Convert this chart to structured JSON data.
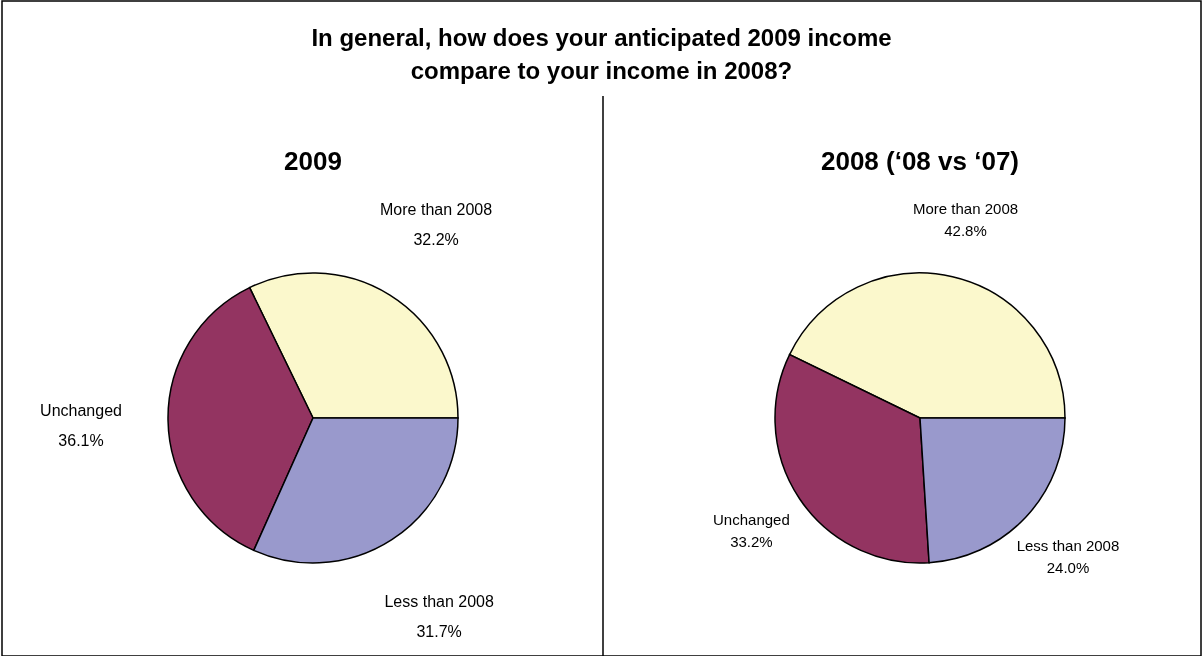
{
  "chart_data": [
    {
      "type": "other",
      "title": "In general, how does your anticipated 2009 income\ncompare to your income in 2008?"
    },
    {
      "type": "pie",
      "title": "2009",
      "categories": [
        "More than 2008",
        "Unchanged",
        "Less than 2008"
      ],
      "values": [
        32.2,
        36.1,
        31.7
      ],
      "colors": [
        "#fbf8cc",
        "#933461",
        "#9999cc"
      ],
      "data_labels": true,
      "value_labels": [
        "32.2%",
        "36.1%",
        "31.7%"
      ]
    },
    {
      "type": "pie",
      "title": "2008 (‘08 vs ‘07)",
      "categories": [
        "More than 2008",
        "Unchanged",
        "Less than 2008"
      ],
      "values": [
        42.8,
        33.2,
        24.0
      ],
      "colors": [
        "#fbf8cc",
        "#933461",
        "#9999cc"
      ],
      "data_labels": true,
      "value_labels": [
        "42.8%",
        "33.2%",
        "24.0%"
      ]
    }
  ]
}
